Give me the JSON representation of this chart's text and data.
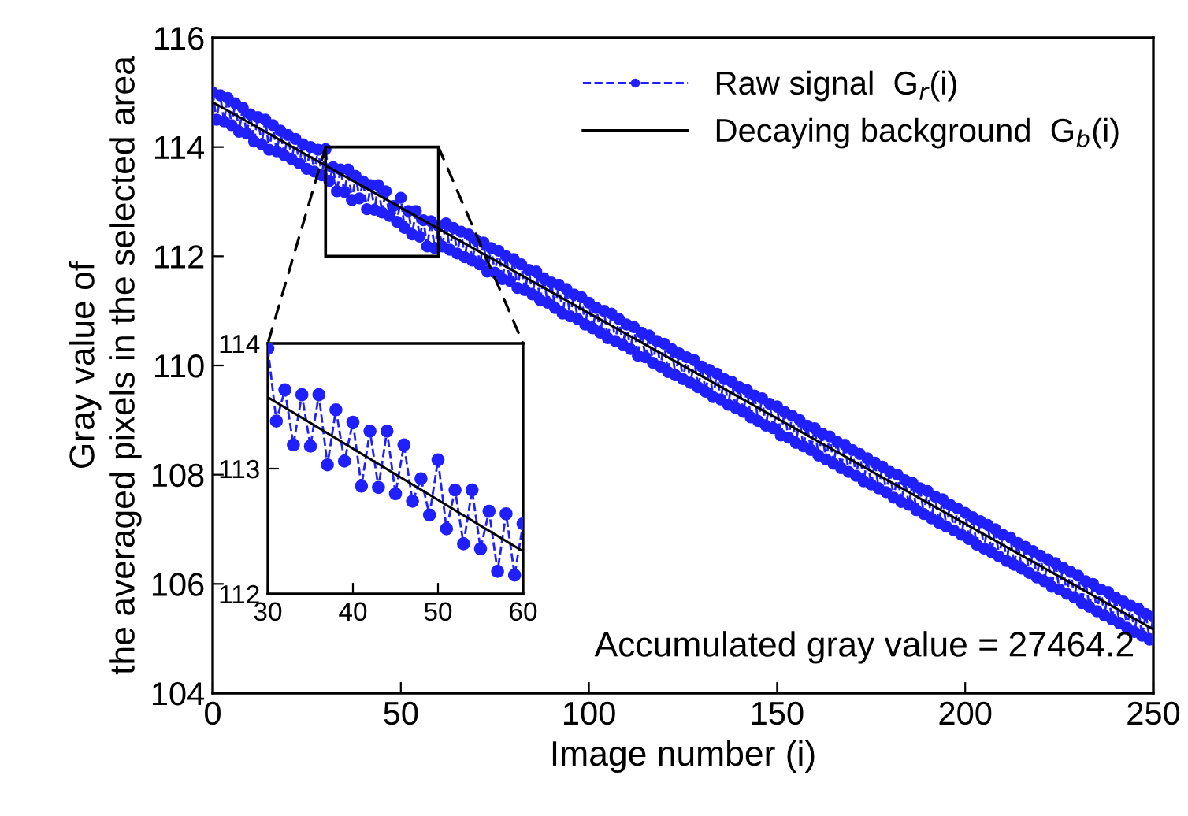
{
  "chart_data": [
    {
      "type": "line",
      "xlabel": "Image number (i)",
      "ylabel": "Gray value of\nthe averaged pixels in the selected area",
      "xlim": [
        0,
        250
      ],
      "ylim": [
        104,
        116
      ],
      "xticks": [
        0,
        50,
        100,
        150,
        200,
        250
      ],
      "yticks": [
        104,
        106,
        108,
        110,
        112,
        114,
        116
      ],
      "legend": "top right",
      "grid": false,
      "annotations": [
        "Accumulated gray value = 27464.2"
      ],
      "series": [
        {
          "name": "Raw signal  G$_{r}$(i)",
          "color": "#1f1fff",
          "marker": "circle",
          "line_style": "dashed",
          "x": [
            0,
            1,
            2,
            3,
            4,
            5,
            6,
            7,
            8,
            9,
            10,
            11,
            12,
            13,
            14,
            15,
            16,
            17,
            18,
            19,
            20,
            21,
            22,
            23,
            24,
            25,
            26,
            27,
            28,
            29,
            30,
            31,
            32,
            33,
            34,
            35,
            36,
            37,
            38,
            39,
            40,
            41,
            42,
            43,
            44,
            45,
            46,
            47,
            48,
            49,
            50,
            51,
            52,
            53,
            54,
            55,
            56,
            57,
            58,
            59,
            60,
            61,
            62,
            63,
            64,
            65,
            66,
            67,
            68,
            69,
            70,
            71,
            72,
            73,
            74,
            75,
            76,
            77,
            78,
            79,
            80,
            81,
            82,
            83,
            84,
            85,
            86,
            87,
            88,
            89,
            90,
            91,
            92,
            93,
            94,
            95,
            96,
            97,
            98,
            99,
            100,
            101,
            102,
            103,
            104,
            105,
            106,
            107,
            108,
            109,
            110,
            111,
            112,
            113,
            114,
            115,
            116,
            117,
            118,
            119,
            120,
            121,
            122,
            123,
            124,
            125,
            126,
            127,
            128,
            129,
            130,
            131,
            132,
            133,
            134,
            135,
            136,
            137,
            138,
            139,
            140,
            141,
            142,
            143,
            144,
            145,
            146,
            147,
            148,
            149,
            150,
            151,
            152,
            153,
            154,
            155,
            156,
            157,
            158,
            159,
            160,
            161,
            162,
            163,
            164,
            165,
            166,
            167,
            168,
            169,
            170,
            171,
            172,
            173,
            174,
            175,
            176,
            177,
            178,
            179,
            180,
            181,
            182,
            183,
            184,
            185,
            186,
            187,
            188,
            189,
            190,
            191,
            192,
            193,
            194,
            195,
            196,
            197,
            198,
            199,
            200,
            201,
            202,
            203,
            204,
            205,
            206,
            207,
            208,
            209,
            210,
            211,
            212,
            213,
            214,
            215,
            216,
            217,
            218,
            219,
            220,
            221,
            222,
            223,
            224,
            225,
            226,
            227,
            228,
            229,
            230,
            231,
            232,
            233,
            234,
            235,
            236,
            237,
            238,
            239,
            240,
            241,
            242,
            243,
            244,
            245,
            246,
            247,
            248,
            249,
            250
          ],
          "values": [
            115.0,
            114.5,
            114.95,
            114.47,
            114.9,
            114.4,
            114.8,
            114.28,
            114.72,
            114.25,
            114.6,
            114.1,
            114.55,
            114.05,
            114.5,
            113.95,
            114.4,
            113.92,
            114.3,
            113.85,
            114.22,
            113.78,
            114.15,
            113.7,
            114.05,
            113.6,
            114.0,
            113.55,
            113.95,
            113.48,
            113.96,
            113.38,
            113.63,
            113.19,
            113.59,
            113.18,
            113.59,
            113.03,
            113.47,
            113.06,
            113.37,
            112.86,
            113.3,
            112.85,
            113.3,
            112.8,
            113.19,
            112.74,
            112.92,
            112.63,
            113.07,
            112.52,
            112.83,
            112.4,
            112.83,
            112.36,
            112.66,
            112.18,
            112.64,
            112.15,
            112.56,
            112.18,
            112.6,
            112.12,
            112.52,
            112.05,
            112.45,
            111.98,
            112.4,
            111.92,
            112.3,
            111.85,
            112.25,
            111.72,
            112.15,
            111.7,
            112.1,
            111.58,
            112.0,
            111.55,
            111.95,
            111.42,
            111.85,
            111.38,
            111.75,
            111.3,
            111.72,
            111.2,
            111.6,
            111.15,
            111.52,
            111.05,
            111.48,
            110.95,
            111.4,
            110.9,
            111.3,
            110.85,
            111.25,
            110.75,
            111.15,
            110.68,
            111.05,
            110.6,
            111.0,
            110.5,
            110.95,
            110.45,
            110.85,
            110.38,
            110.75,
            110.3,
            110.7,
            110.18,
            110.6,
            110.15,
            110.55,
            110.05,
            110.45,
            109.98,
            110.4,
            109.88,
            110.3,
            109.82,
            110.22,
            109.75,
            110.15,
            109.68,
            110.1,
            109.6,
            109.98,
            109.52,
            109.92,
            109.42,
            109.85,
            109.38,
            109.75,
            109.28,
            109.7,
            109.22,
            109.6,
            109.15,
            109.55,
            109.05,
            109.45,
            108.98,
            109.4,
            108.9,
            109.3,
            108.85,
            109.25,
            108.72,
            109.15,
            108.68,
            109.08,
            108.58,
            109.0,
            108.52,
            108.9,
            108.45,
            108.85,
            108.35,
            108.75,
            108.28,
            108.7,
            108.2,
            108.6,
            108.12,
            108.55,
            108.05,
            108.45,
            107.98,
            108.38,
            107.88,
            108.3,
            107.82,
            108.22,
            107.75,
            108.15,
            107.68,
            108.05,
            107.58,
            108.0,
            107.5,
            107.9,
            107.45,
            107.85,
            107.35,
            107.75,
            107.28,
            107.7,
            107.2,
            107.6,
            107.12,
            107.55,
            107.05,
            107.45,
            106.98,
            107.38,
            106.9,
            107.3,
            106.82,
            107.22,
            106.72,
            107.15,
            106.65,
            107.08,
            106.58,
            107.0,
            106.5,
            106.9,
            106.42,
            106.85,
            106.35,
            106.75,
            106.28,
            106.68,
            106.2,
            106.6,
            106.12,
            106.52,
            106.05,
            106.45,
            105.95,
            106.38,
            105.9,
            106.3,
            105.82,
            106.22,
            105.75,
            106.15,
            105.65,
            106.05,
            105.58,
            106.0,
            105.5,
            105.9,
            105.42,
            105.85,
            105.35,
            105.75,
            105.28,
            105.68,
            105.2,
            105.6,
            105.12,
            105.55,
            105.05,
            105.45,
            104.98,
            105.4
          ]
        },
        {
          "name": "Decaying background  G$_{b}$(i)",
          "color": "#000000",
          "marker": "none",
          "line_style": "solid",
          "x": [
            0,
            250
          ],
          "values": [
            114.82,
            105.17
          ]
        }
      ]
    },
    {
      "type": "line",
      "xlim": [
        30,
        60
      ],
      "ylim": [
        112,
        114
      ],
      "xticks": [
        30,
        40,
        50,
        60
      ],
      "yticks": [
        112,
        113,
        114
      ],
      "grid": false,
      "legend": false,
      "series": [
        {
          "color": "#1f1fff",
          "marker": "circle",
          "line_style": "dashed",
          "x": [
            30,
            31,
            32,
            33,
            34,
            35,
            36,
            37,
            38,
            39,
            40,
            41,
            42,
            43,
            44,
            45,
            46,
            47,
            48,
            49,
            50,
            51,
            52,
            53,
            54,
            55,
            56,
            57,
            58,
            59,
            60
          ],
          "values": [
            113.96,
            113.38,
            113.63,
            113.19,
            113.59,
            113.18,
            113.59,
            113.03,
            113.47,
            113.06,
            113.37,
            112.86,
            113.3,
            112.85,
            113.3,
            112.8,
            113.19,
            112.74,
            112.92,
            112.63,
            113.07,
            112.52,
            112.83,
            112.4,
            112.83,
            112.36,
            112.66,
            112.18,
            112.64,
            112.15,
            112.56
          ]
        },
        {
          "color": "#000000",
          "marker": "none",
          "line_style": "solid",
          "x": [
            30,
            60
          ],
          "values": [
            113.57,
            112.34
          ]
        }
      ]
    }
  ]
}
